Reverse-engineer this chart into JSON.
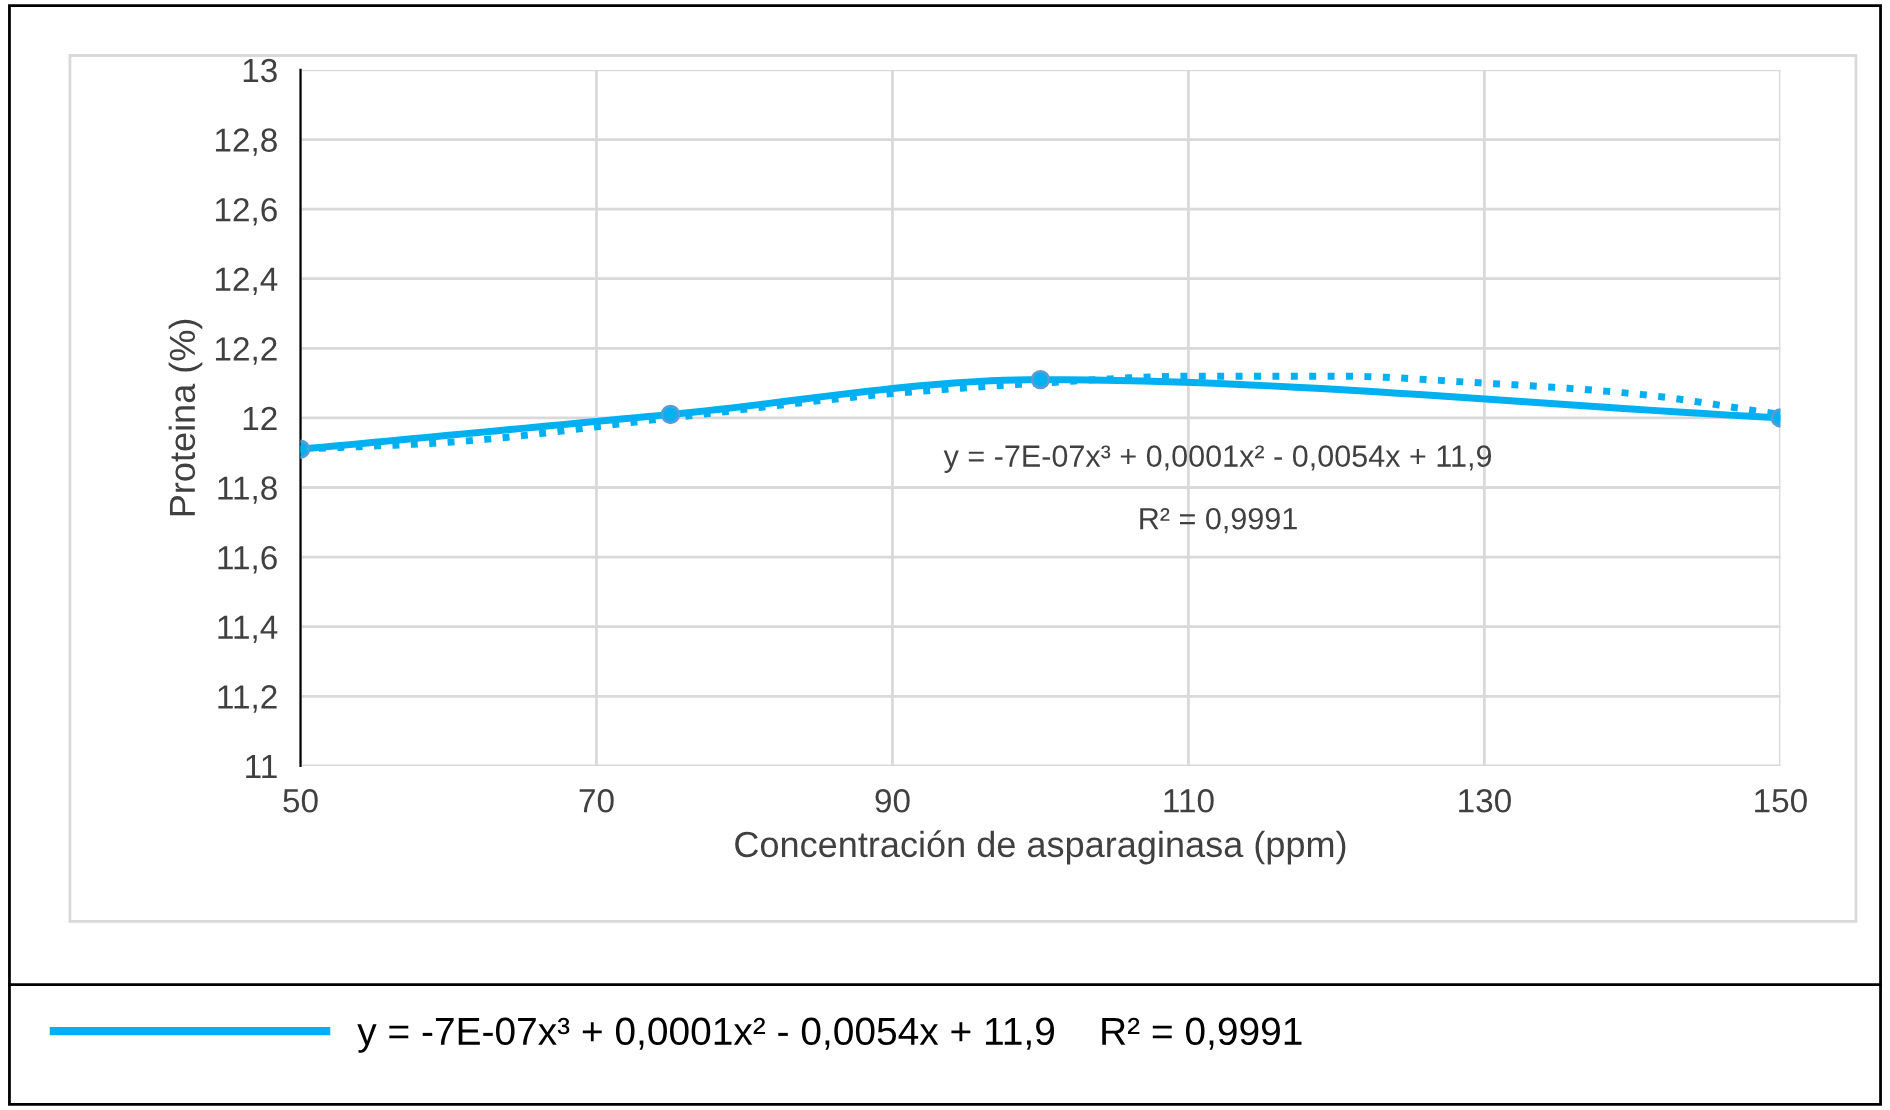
{
  "chart_data": {
    "type": "line",
    "xlabel": "Concentración de asparaginasa (ppm)",
    "ylabel": "Proteina (%)",
    "xlim": [
      50,
      150
    ],
    "xticks": [
      50,
      70,
      90,
      110,
      130,
      150
    ],
    "ylim": [
      11,
      13
    ],
    "yticks": [
      11,
      {
        "value": 11.2,
        "label": "11,2"
      },
      {
        "value": 11.4,
        "label": "11,4"
      },
      {
        "value": 11.6,
        "label": "11,6"
      },
      {
        "value": 11.8,
        "label": "11,8"
      },
      12,
      {
        "value": 12.2,
        "label": "12,2"
      },
      {
        "value": 12.4,
        "label": "12,4"
      },
      {
        "value": 12.6,
        "label": "12,6"
      },
      {
        "value": 12.8,
        "label": "12,8"
      },
      13
    ],
    "grid": true,
    "legend": "bottom",
    "annotations": [
      "y = -7E-07x³ + 0,0001x² - 0,0054x + 11,9",
      "R² = 0,9991"
    ],
    "series": [
      {
        "name": "y = -7E-07x³ + 0,0001x² - 0,0054x + 11,9    R² = 0,9991",
        "color": "#00b0f0",
        "x": [
          50,
          75,
          100,
          150
        ],
        "values": [
          11.91,
          12.01,
          12.11,
          12.0
        ],
        "marker": "circle",
        "line_style": "solid"
      },
      {
        "color": "#00b0f0",
        "x": [
          50,
          60,
          75,
          90,
          100,
          110,
          120,
          130,
          140,
          150
        ],
        "values": [
          11.91,
          11.93,
          12.0,
          12.07,
          12.1,
          12.12,
          12.12,
          12.1,
          12.07,
          12.01
        ],
        "marker": "none",
        "line_style": "dotted"
      }
    ]
  }
}
